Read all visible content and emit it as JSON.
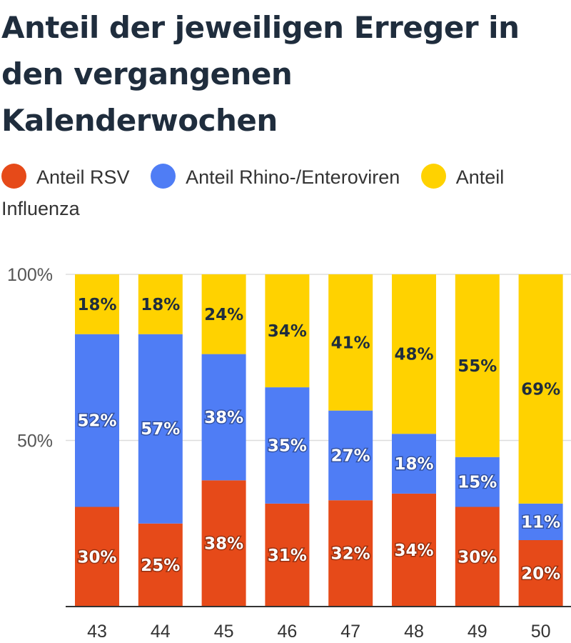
{
  "chart_data": {
    "type": "bar",
    "stacked": true,
    "title": "Anteil der jeweiligen Erreger in den vergangenen Kalenderwochen",
    "xlabel": "",
    "ylabel": "",
    "ylim": [
      0,
      100
    ],
    "y_ticks": [
      "50%",
      "100%"
    ],
    "y_tick_values": [
      50,
      100
    ],
    "legend_position": "top",
    "grid": true,
    "categories": [
      "43",
      "44",
      "45",
      "46",
      "47",
      "48",
      "49",
      "50"
    ],
    "series": [
      {
        "name": "Anteil RSV",
        "color": "#e64a19",
        "label_color": "#ffffff",
        "values": [
          30,
          25,
          38,
          31,
          32,
          34,
          30,
          20
        ],
        "labels": [
          "30%",
          "25%",
          "38%",
          "31%",
          "32%",
          "34%",
          "30%",
          "20%"
        ]
      },
      {
        "name": "Anteil Rhino-/Enteroviren",
        "color": "#4f7df5",
        "label_color": "#ffffff",
        "values": [
          52,
          57,
          38,
          35,
          27,
          18,
          15,
          11
        ],
        "labels": [
          "52%",
          "57%",
          "38%",
          "35%",
          "27%",
          "18%",
          "15%",
          "11%"
        ]
      },
      {
        "name": "Anteil Influenza",
        "color": "#ffd200",
        "label_color": "#1f2d3d",
        "values": [
          18,
          18,
          24,
          34,
          41,
          48,
          55,
          69
        ],
        "labels": [
          "18%",
          "18%",
          "24%",
          "34%",
          "41%",
          "48%",
          "55%",
          "69%"
        ]
      }
    ]
  }
}
